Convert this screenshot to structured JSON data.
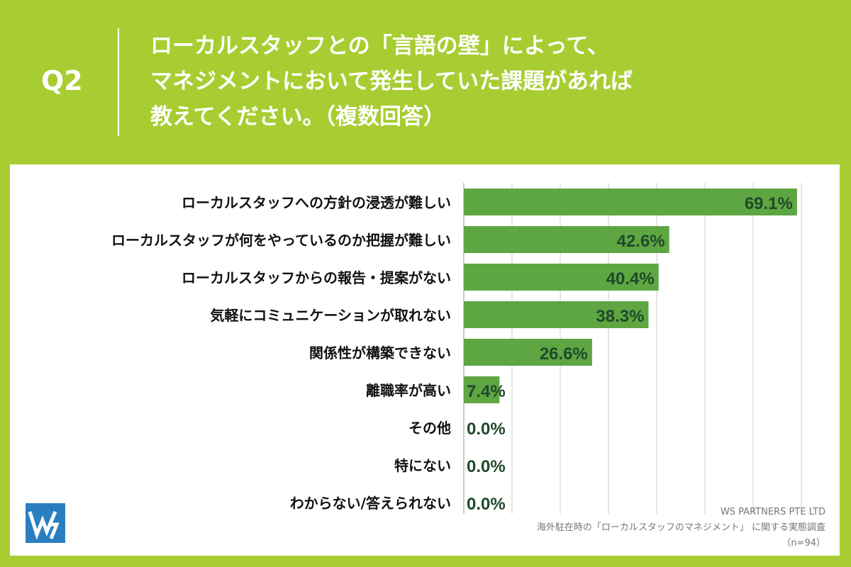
{
  "header": {
    "q_label": "Q2",
    "question_lines": [
      "ローカルスタッフとの「言語の壁」によって、",
      "マネジメントにおいて発生していた課題があれば",
      "教えてください。（複数回答）"
    ]
  },
  "colors": {
    "background": "#a8cd32",
    "bar": "#5ea642",
    "value_label": "#1f4a2a",
    "category_label": "#111111",
    "grid": "#cccccc",
    "logo": "#2a7fc0"
  },
  "icons": {
    "logo": "ws-partners-logo-icon"
  },
  "chart_data": {
    "type": "bar",
    "orientation": "horizontal",
    "categories": [
      "ローカルスタッフへの方針の浸透が難しい",
      "ローカルスタッフが何をやっているのか把握が難しい",
      "ローカルスタッフからの報告・提案がない",
      "気軽にコミュニケーションが取れない",
      "関係性が構築できない",
      "離職率が高い",
      "その他",
      "特にない",
      "わからない/答えられない"
    ],
    "values": [
      69.1,
      42.6,
      40.4,
      38.3,
      26.6,
      7.4,
      0.0,
      0.0,
      0.0
    ],
    "value_labels": [
      "69.1%",
      "42.6%",
      "40.4%",
      "38.3%",
      "26.6%",
      "7.4%",
      "0.0%",
      "0.0%",
      "0.0%"
    ],
    "xlim": [
      0,
      70
    ],
    "grid": true,
    "grid_step": 10
  },
  "footer": {
    "company": "WS PARTNERS PTE LTD",
    "survey": "海外駐在時の「ローカルスタッフのマネジメント」 に関する実態調査",
    "sample": "（n=94）"
  }
}
